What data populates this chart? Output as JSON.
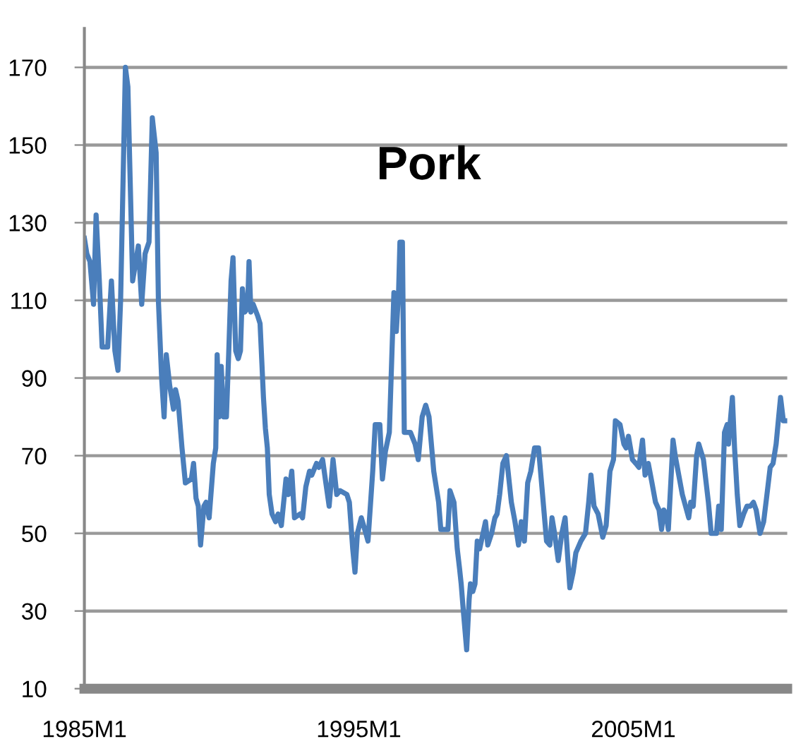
{
  "chart_data": {
    "type": "line",
    "title": "Pork",
    "x": [
      "1985-01-01",
      "1985-02-03",
      "1985-03-16",
      "1985-05-03",
      "1985-06-06",
      "1985-07-19",
      "1985-08-25",
      "1985-11-07",
      "1985-12-27",
      "1986-02-11",
      "1986-03-24",
      "1986-04-28",
      "1986-07-01",
      "1986-08-03",
      "1986-10-05",
      "1986-12-20",
      "1987-02-03",
      "1987-03-20",
      "1987-05-11",
      "1987-06-24",
      "1987-08-14",
      "1987-09-13",
      "1987-10-26",
      "1987-11-28",
      "1987-12-27",
      "1988-02-11",
      "1988-04-01",
      "1988-04-28",
      "1988-06-02",
      "1988-07-23",
      "1988-09-06",
      "1988-11-25",
      "1988-12-24",
      "1989-01-26",
      "1989-02-25",
      "1989-03-27",
      "1989-05-11",
      "1989-06-09",
      "1989-07-19",
      "1989-09-13",
      "1989-10-15",
      "1989-11-03",
      "1989-11-28",
      "1989-12-27",
      "1990-01-28",
      "1990-03-06",
      "1990-04-05",
      "1990-05-07",
      "1990-06-02",
      "1990-07-08",
      "1990-08-11",
      "1990-09-09",
      "1990-10-05",
      "1990-11-07",
      "1990-12-13",
      "1991-01-01",
      "1991-01-26",
      "1991-02-25",
      "1991-04-26",
      "1991-05-28",
      "1991-07-12",
      "1991-08-07",
      "1991-09-02",
      "1991-09-27",
      "1991-11-03",
      "1991-12-20",
      "1992-01-23",
      "1992-03-06",
      "1992-05-07",
      "1992-06-09",
      "1992-07-23",
      "1992-08-28",
      "1992-11-11",
      "1992-12-13",
      "1993-01-26",
      "1993-03-16",
      "1993-04-15",
      "1993-06-17",
      "1993-07-19",
      "1993-09-06",
      "1993-10-19",
      "1993-12-02",
      "1994-01-23",
      "1994-03-13",
      "1994-04-26",
      "1994-07-26",
      "1994-08-28",
      "1994-10-12",
      "1994-11-11",
      "1994-12-13",
      "1995-02-03",
      "1995-04-05",
      "1995-05-03",
      "1995-07-05",
      "1995-08-07",
      "1995-10-08",
      "1995-11-11",
      "1995-12-20",
      "1996-02-11",
      "1996-04-12",
      "1996-05-14",
      "1996-06-13",
      "1996-07-01",
      "1996-08-03",
      "1996-08-28",
      "1996-11-18",
      "1997-01-19",
      "1997-03-02",
      "1997-04-23",
      "1997-06-09",
      "1997-07-23",
      "1997-09-24",
      "1997-11-28",
      "1997-12-27",
      "1998-04-01",
      "1998-04-28",
      "1998-06-20",
      "1998-08-03",
      "1998-09-02",
      "1998-09-24",
      "1998-10-23",
      "1998-12-06",
      "1999-01-08",
      "1999-01-26",
      "1999-02-25",
      "1999-03-27",
      "1999-04-26",
      "1999-05-28",
      "1999-07-12",
      "1999-08-14",
      "1999-09-13",
      "1999-11-03",
      "1999-12-17",
      "2000-01-15",
      "2000-02-18",
      "2000-04-01",
      "2000-05-18",
      "2000-07-23",
      "2000-09-09",
      "2000-10-26",
      "2000-12-02",
      "2001-01-12",
      "2001-02-25",
      "2001-04-08",
      "2001-05-28",
      "2001-07-19",
      "2001-09-02",
      "2001-11-03",
      "2001-12-17",
      "2002-01-15",
      "2002-02-18",
      "2002-04-08",
      "2002-05-25",
      "2002-07-08",
      "2002-08-11",
      "2002-09-09",
      "2002-10-23",
      "2002-11-28",
      "2003-02-03",
      "2003-04-05",
      "2003-05-18",
      "2003-06-17",
      "2003-07-28",
      "2003-09-20",
      "2003-11-21",
      "2004-01-05",
      "2004-02-25",
      "2004-04-12",
      "2004-05-07",
      "2004-07-08",
      "2004-08-28",
      "2004-09-27",
      "2004-10-28",
      "2004-12-20",
      "2005-02-03",
      "2005-03-16",
      "2005-05-03",
      "2005-06-06",
      "2005-07-19",
      "2005-09-06",
      "2005-10-23",
      "2005-12-09",
      "2006-01-12",
      "2006-02-11",
      "2006-03-13",
      "2006-04-12",
      "2006-06-13",
      "2006-07-12",
      "2006-10-15",
      "2007-01-08",
      "2007-02-03",
      "2007-03-09",
      "2007-04-23",
      "2007-05-21",
      "2007-07-23",
      "2007-09-27",
      "2007-11-03",
      "2008-01-12",
      "2008-02-11",
      "2008-03-16",
      "2008-04-28",
      "2008-06-02",
      "2008-06-20",
      "2008-07-15",
      "2008-08-11",
      "2008-09-09",
      "2008-10-15",
      "2008-11-18",
      "2009-01-08",
      "2009-02-21",
      "2009-04-08",
      "2009-05-18",
      "2009-06-24",
      "2009-08-14",
      "2009-10-01",
      "2009-11-14",
      "2009-12-27",
      "2010-02-03",
      "2010-03-16",
      "2010-04-19",
      "2010-05-14",
      "2010-06-20",
      "2010-08-11"
    ],
    "series": [
      {
        "color": "#4a7ebb",
        "values": [
          126,
          122,
          120,
          109,
          132,
          115,
          98,
          98,
          115,
          97,
          92,
          110,
          170,
          165,
          115,
          124,
          109,
          122,
          125,
          157,
          148,
          110,
          90,
          80,
          96,
          88,
          82,
          87,
          84,
          72,
          63,
          64,
          68,
          59,
          57,
          47,
          57,
          58,
          54,
          68,
          72,
          96,
          80,
          93,
          80,
          80,
          96,
          115,
          121,
          97,
          95,
          97,
          113,
          107,
          108,
          120,
          107,
          109,
          106,
          104,
          85,
          77,
          72,
          60,
          55,
          53,
          55,
          52,
          64,
          60,
          66,
          54,
          55,
          54,
          62,
          66,
          65,
          68,
          67,
          69,
          63,
          57,
          69,
          60,
          61,
          60,
          58,
          46,
          40,
          50,
          54,
          50,
          48,
          66,
          78,
          78,
          64,
          71,
          76,
          112,
          102,
          112,
          125,
          125,
          76,
          76,
          73,
          69,
          80,
          83,
          80,
          66,
          58,
          51,
          51,
          61,
          58,
          46,
          41,
          37,
          30,
          20,
          33,
          37,
          35,
          37,
          48,
          46,
          50,
          53,
          47,
          50,
          54,
          55,
          60,
          68,
          70,
          58,
          53,
          47,
          53,
          48,
          63,
          66,
          72,
          72,
          62,
          48,
          47,
          54,
          50,
          43,
          50,
          54,
          44,
          36,
          40,
          45,
          48,
          50,
          58,
          65,
          57,
          55,
          49,
          52,
          66,
          69,
          79,
          78,
          73,
          72,
          75,
          69,
          68,
          67,
          74,
          65,
          68,
          63,
          58,
          56,
          51,
          56,
          55,
          51,
          74,
          70,
          60,
          54,
          58,
          57,
          70,
          73,
          69,
          58,
          50,
          50,
          57,
          51,
          76,
          78,
          73,
          79,
          85,
          72,
          60,
          52,
          55,
          57,
          57,
          58,
          56,
          50,
          53,
          60,
          67,
          68,
          73,
          80,
          85,
          79,
          79
        ]
      }
    ],
    "xlim": [
      "1985-01-01",
      "2010-08-11"
    ],
    "xticks": [
      {
        "value": "1985-01-01",
        "label": "1985M1"
      },
      {
        "value": "1995-01-01",
        "label": "1995M1"
      },
      {
        "value": "2005-01-01",
        "label": "2005M1"
      }
    ],
    "ylim": [
      10,
      180
    ],
    "yticks": [
      10,
      30,
      50,
      70,
      90,
      110,
      130,
      150,
      170
    ],
    "grid": "y",
    "marker": "none",
    "line_style": "solid"
  }
}
